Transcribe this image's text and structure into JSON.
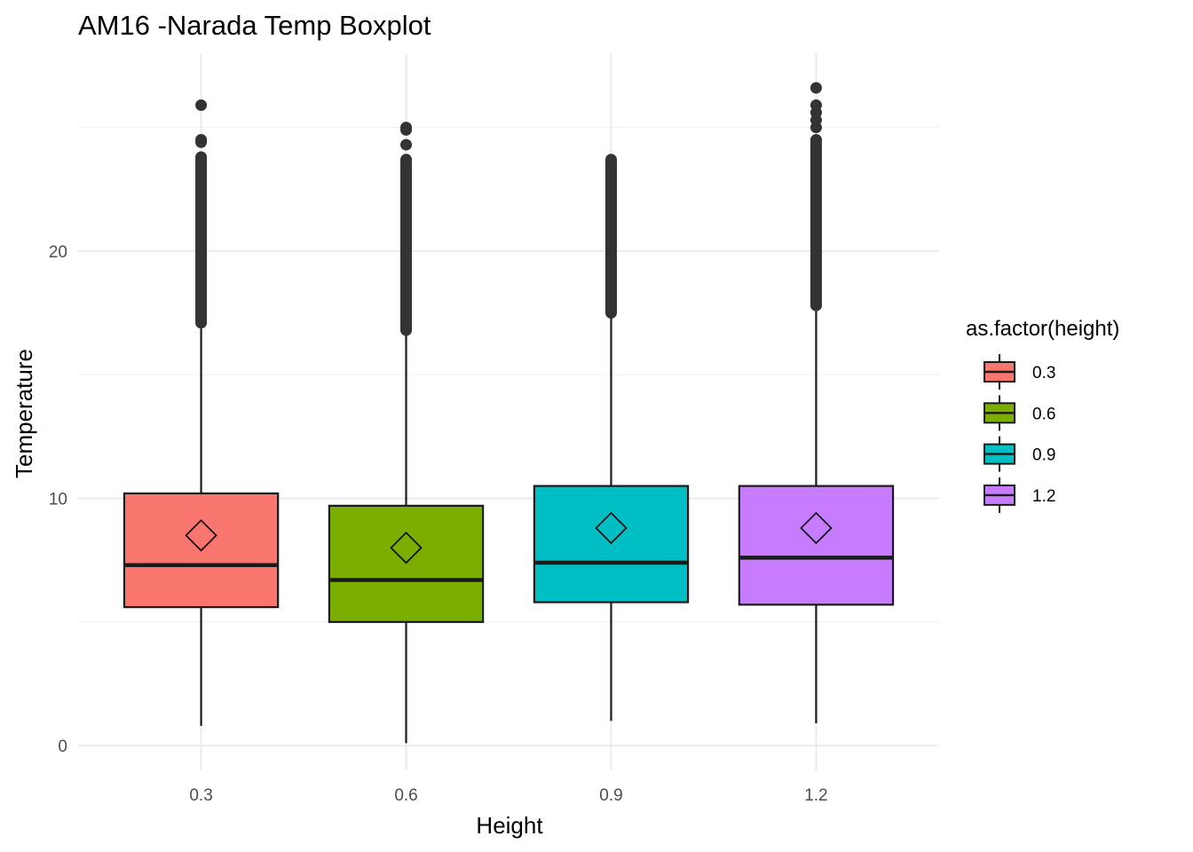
{
  "chart_data": {
    "type": "boxplot",
    "title": "AM16 -Narada Temp Boxplot",
    "xlabel": "Height",
    "ylabel": "Temperature",
    "ylim": [
      -1,
      28
    ],
    "y_ticks": [
      0,
      10,
      20
    ],
    "grid": true,
    "legend": {
      "title": "as.factor(height)",
      "position": "right"
    },
    "categories": [
      "0.3",
      "0.6",
      "0.9",
      "1.2"
    ],
    "series": [
      {
        "category": "0.3",
        "color": "#F8766D",
        "whisker_low": 0.8,
        "q1": 5.6,
        "median": 7.3,
        "q3": 10.2,
        "whisker_high": 17.1,
        "mean": 8.5,
        "outlier_range": [
          17.1,
          23.8
        ],
        "outliers": [
          24.4,
          24.5,
          25.9
        ]
      },
      {
        "category": "0.6",
        "color": "#7CAE00",
        "whisker_low": 0.1,
        "q1": 5.0,
        "median": 6.7,
        "q3": 9.7,
        "whisker_high": 16.8,
        "mean": 8.0,
        "outlier_range": [
          16.8,
          23.7
        ],
        "outliers": [
          24.3,
          24.9,
          25.0
        ]
      },
      {
        "category": "0.9",
        "color": "#00BFC4",
        "whisker_low": 1.0,
        "q1": 5.8,
        "median": 7.4,
        "q3": 10.5,
        "whisker_high": 17.5,
        "mean": 8.8,
        "outlier_range": [
          17.5,
          23.7
        ],
        "outliers": []
      },
      {
        "category": "1.2",
        "color": "#C77CFF",
        "whisker_low": 0.9,
        "q1": 5.7,
        "median": 7.6,
        "q3": 10.5,
        "whisker_high": 17.8,
        "mean": 8.8,
        "outlier_range": [
          17.8,
          24.5
        ],
        "outliers": [
          25.0,
          25.3,
          25.6,
          25.9,
          26.6
        ]
      }
    ]
  }
}
